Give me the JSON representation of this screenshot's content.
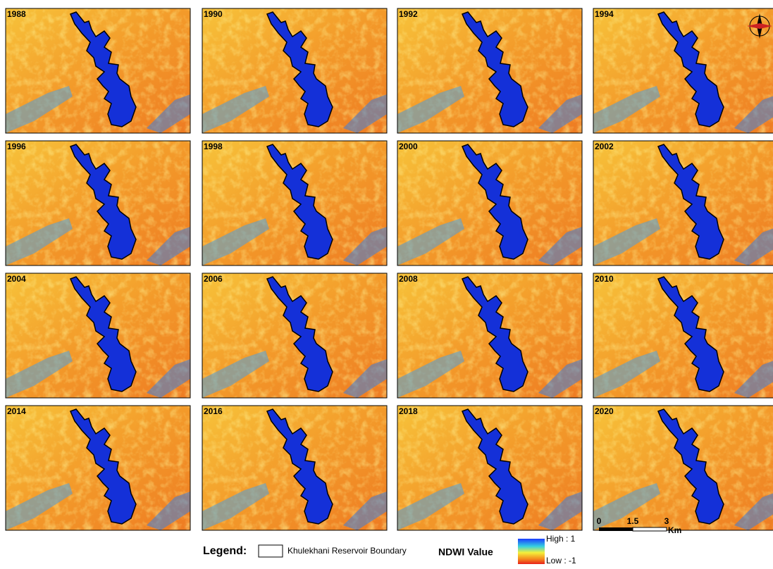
{
  "panels": [
    {
      "year": "1988"
    },
    {
      "year": "1990"
    },
    {
      "year": "1992"
    },
    {
      "year": "1994"
    },
    {
      "year": "1996"
    },
    {
      "year": "1998"
    },
    {
      "year": "2000"
    },
    {
      "year": "2002"
    },
    {
      "year": "2004"
    },
    {
      "year": "2006"
    },
    {
      "year": "2008"
    },
    {
      "year": "2010"
    },
    {
      "year": "2014"
    },
    {
      "year": "2016"
    },
    {
      "year": "2018"
    },
    {
      "year": "2020"
    }
  ],
  "legend": {
    "title": "Legend:",
    "boundary": "Khulekhani Reservoir Boundary",
    "ndwi_title": "NDWI Value",
    "high": "High : 1",
    "low": "Low : -1"
  },
  "scale_bar": {
    "labels": [
      "0",
      "1.5",
      "3"
    ],
    "unit": "Km"
  }
}
